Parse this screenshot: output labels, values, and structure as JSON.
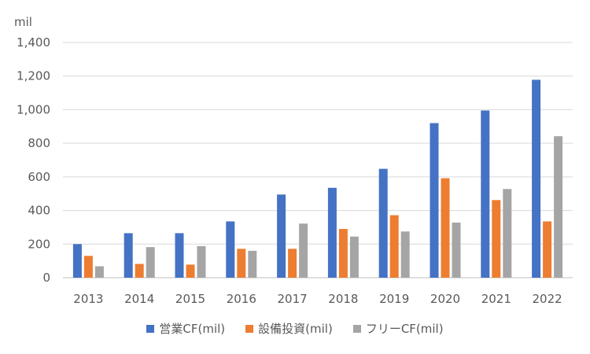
{
  "chart_data": {
    "type": "bar",
    "unit_label": "mil",
    "categories": [
      "2013",
      "2014",
      "2015",
      "2016",
      "2017",
      "2018",
      "2019",
      "2020",
      "2021",
      "2022"
    ],
    "series": [
      {
        "name": "営業CF(mil)",
        "color": "#4472c4",
        "values": [
          200,
          265,
          265,
          335,
          495,
          535,
          648,
          920,
          995,
          1178
        ]
      },
      {
        "name": "設備投資(mil)",
        "color": "#ed7d31",
        "values": [
          130,
          82,
          78,
          172,
          172,
          290,
          372,
          592,
          462,
          335
        ]
      },
      {
        "name": "フリーCF(mil)",
        "color": "#a5a5a5",
        "values": [
          68,
          182,
          188,
          160,
          322,
          245,
          275,
          328,
          528,
          842
        ]
      }
    ],
    "ylim": [
      0,
      1400
    ],
    "yticks": [
      "0",
      "200",
      "400",
      "600",
      "800",
      "1,000",
      "1,200",
      "1,400"
    ],
    "grid": true,
    "legend_position": "bottom"
  }
}
